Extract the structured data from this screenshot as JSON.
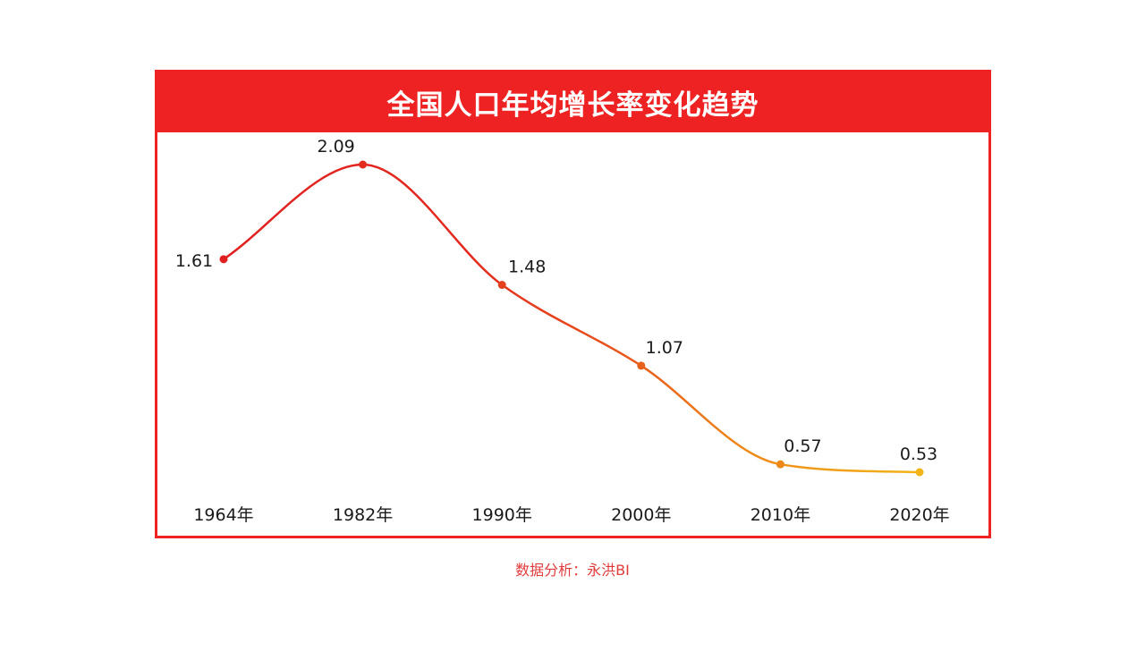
{
  "chart_data": {
    "type": "line",
    "title": "全国人口年均增长率变化趋势",
    "categories": [
      "1964年",
      "1982年",
      "1990年",
      "2000年",
      "2010年",
      "2020年"
    ],
    "values": [
      1.61,
      2.09,
      1.48,
      1.07,
      0.57,
      0.53
    ],
    "data_labels": [
      "1.61",
      "2.09",
      "1.48",
      "1.07",
      "0.57",
      "0.53"
    ],
    "xlabel": "",
    "ylabel": "",
    "ylim": [
      0.5,
      2.1
    ],
    "grid": false,
    "legend": "none",
    "line_gradient": [
      "#e02020",
      "#f2b416"
    ],
    "frame_color": "#ef2323",
    "title_bg": "#ee2222"
  },
  "source": "数据分析：永洪BI"
}
